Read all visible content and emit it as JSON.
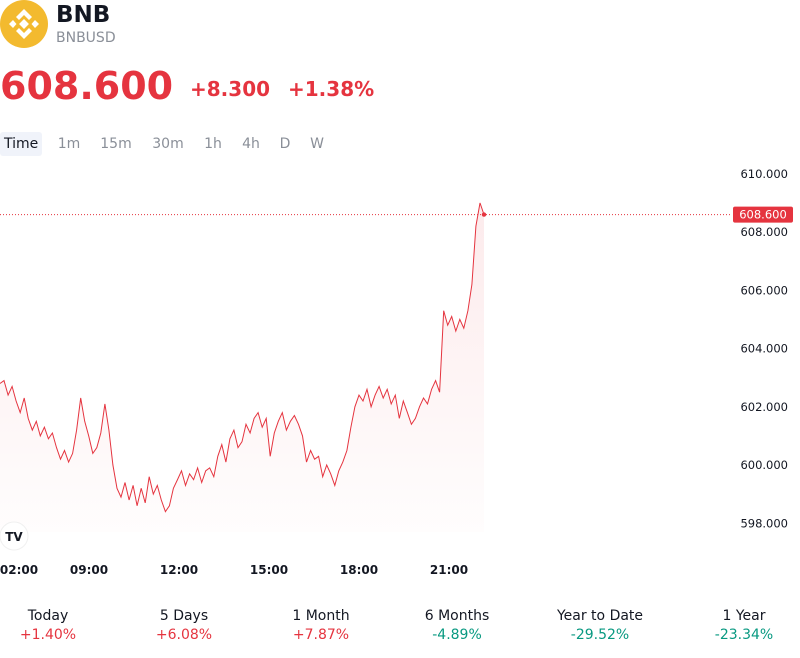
{
  "header": {
    "symbol": "BNB",
    "ticker": "BNBUSD",
    "logo_icon": "bnb-logo-icon",
    "logo_color": "#F3BA2F"
  },
  "quote": {
    "price": "608.600",
    "change": "+8.300",
    "change_pct": "+1.38%",
    "color": "#e5343f"
  },
  "tabs": [
    {
      "label": "Time",
      "active": true
    },
    {
      "label": "1m",
      "active": false
    },
    {
      "label": "15m",
      "active": false
    },
    {
      "label": "30m",
      "active": false
    },
    {
      "label": "1h",
      "active": false
    },
    {
      "label": "4h",
      "active": false
    },
    {
      "label": "D",
      "active": false
    },
    {
      "label": "W",
      "active": false
    }
  ],
  "chart_data": {
    "type": "area",
    "x_tick_labels": [
      "02:00",
      "09:00",
      "12:00",
      "15:00",
      "18:00",
      "21:00"
    ],
    "y_tick_labels": [
      "610.000",
      "608.000",
      "606.000",
      "604.000",
      "602.000",
      "600.000",
      "598.000"
    ],
    "ylim": [
      597.7,
      610.2
    ],
    "last_price_label": "608.600",
    "last_price": 608.6,
    "line_color": "#e5343f",
    "grid": false,
    "watermark_icon": "tradingview-logo-icon",
    "series": [
      {
        "values": [
          602.8,
          602.9,
          602.4,
          602.7,
          602.2,
          601.8,
          602.3,
          601.6,
          601.2,
          601.5,
          601.0,
          601.3,
          600.9,
          601.1,
          600.6,
          600.2,
          600.5,
          600.1,
          600.4,
          601.2,
          602.3,
          601.5,
          601.0,
          600.4,
          600.6,
          601.1,
          602.1,
          601.2,
          600.0,
          599.2,
          598.9,
          599.4,
          598.8,
          599.3,
          598.6,
          599.2,
          598.7,
          599.6,
          599.0,
          599.3,
          598.8,
          598.4,
          598.6,
          599.2,
          599.5,
          599.8,
          599.3,
          599.7,
          599.5,
          599.9,
          599.4,
          599.8,
          599.9,
          599.6,
          600.3,
          600.7,
          600.1,
          600.9,
          601.2,
          600.6,
          600.8,
          601.4,
          601.1,
          601.6,
          601.8,
          601.3,
          601.6,
          600.3,
          601.1,
          601.5,
          601.8,
          601.2,
          601.5,
          601.7,
          601.4,
          601.0,
          600.1,
          600.5,
          600.2,
          600.3,
          599.6,
          600.0,
          599.7,
          599.3,
          599.8,
          600.1,
          600.5,
          601.3,
          602.0,
          602.4,
          602.2,
          602.6,
          602.0,
          602.4,
          602.7,
          602.3,
          602.6,
          602.1,
          602.4,
          601.6,
          602.2,
          601.8,
          601.4,
          601.6,
          602.0,
          602.3,
          602.1,
          602.6,
          602.9,
          602.5,
          605.3,
          604.8,
          605.1,
          604.6,
          605.0,
          604.7,
          605.3,
          606.2,
          608.2,
          609.0,
          608.6
        ]
      }
    ]
  },
  "performance": [
    {
      "label": "Today",
      "value": "+1.40%",
      "trend": "pos"
    },
    {
      "label": "5 Days",
      "value": "+6.08%",
      "trend": "pos"
    },
    {
      "label": "1 Month",
      "value": "+7.87%",
      "trend": "pos"
    },
    {
      "label": "6 Months",
      "value": "-4.89%",
      "trend": "neg"
    },
    {
      "label": "Year to Date",
      "value": "-29.52%",
      "trend": "neg"
    },
    {
      "label": "1 Year",
      "value": "-23.34%",
      "trend": "neg"
    }
  ]
}
